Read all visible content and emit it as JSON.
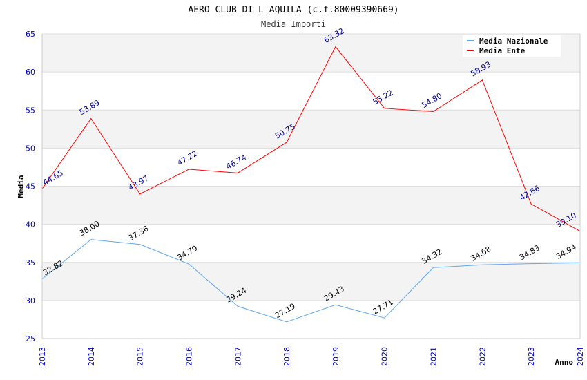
{
  "chart_data": {
    "type": "line",
    "title": "AERO CLUB DI L AQUILA (c.f.80009390669)",
    "subtitle": "Media Importi",
    "xlabel": "Anno",
    "ylabel": "Media",
    "ylim": [
      25,
      65
    ],
    "yticks": [
      25,
      30,
      35,
      40,
      45,
      50,
      55,
      60,
      65
    ],
    "x": [
      "2013",
      "2014",
      "2015",
      "2016",
      "2017",
      "2018",
      "2019",
      "2020",
      "2021",
      "2022",
      "2023",
      "2024"
    ],
    "legend_position": "top-right",
    "series": [
      {
        "name": "Media Nazionale",
        "color": "#5fa8ee",
        "label_color": "#000000",
        "values": [
          32.82,
          38.0,
          37.36,
          34.79,
          29.24,
          27.19,
          29.43,
          27.71,
          34.32,
          34.68,
          34.83,
          34.94
        ]
      },
      {
        "name": "Media Ente",
        "color": "#ff0000",
        "label_color": "#00008b",
        "values": [
          44.65,
          53.89,
          43.97,
          47.22,
          46.74,
          50.75,
          63.32,
          55.22,
          54.8,
          58.93,
          42.66,
          39.1
        ]
      }
    ]
  }
}
